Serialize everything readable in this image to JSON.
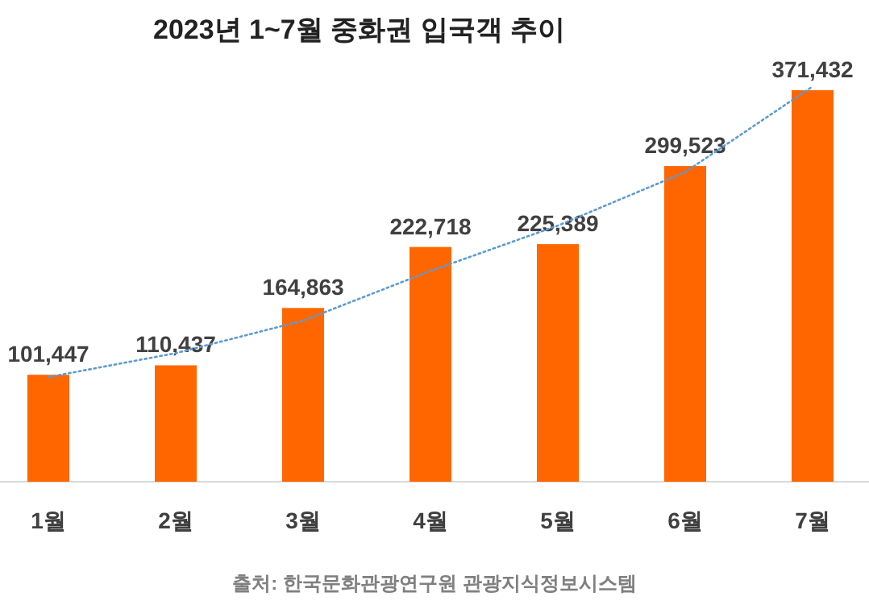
{
  "chart_data": {
    "type": "bar",
    "title": "2023년 1~7월 중화권 입국객 추이",
    "categories": [
      "1월",
      "2월",
      "3월",
      "4월",
      "5월",
      "6월",
      "7월"
    ],
    "series": [
      {
        "color": "#ff6600",
        "values": [
          101447,
          110437,
          164863,
          222718,
          225389,
          299523,
          371432
        ],
        "value_labels": [
          "101,447",
          "110,437",
          "164,863",
          "222,718",
          "225,389",
          "299,523",
          "371,432"
        ]
      },
      {
        "type": "line",
        "color": "#5b9bd5",
        "line_style": "dotted",
        "values": [
          99300,
          122000,
          152800,
          200000,
          243000,
          293800,
          375000
        ]
      }
    ],
    "annotations": [
      "출처: 한국문화관광연구원 관광지식정보시스템"
    ]
  }
}
